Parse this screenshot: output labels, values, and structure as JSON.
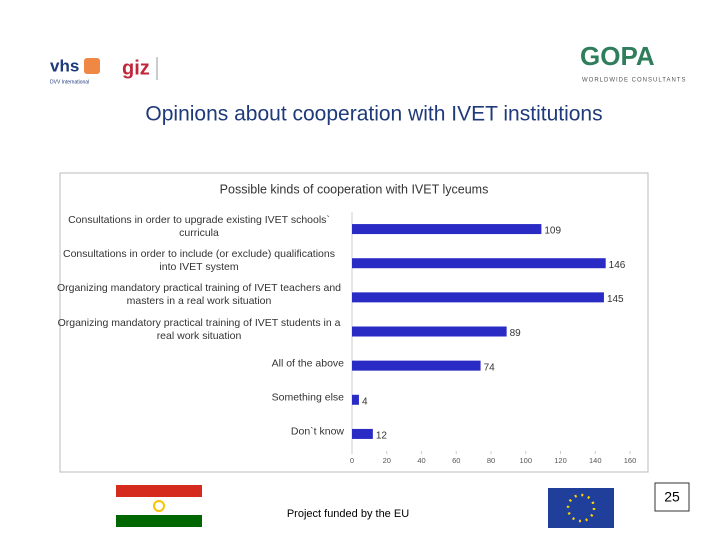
{
  "header": {
    "left_logo_1": "vhs",
    "left_logo_1_sub": "DVV International",
    "left_logo_2": "giz",
    "right_logo": "GOPA",
    "right_logo_sub": "WORLDWIDE CONSULTANTS"
  },
  "slide_title": "Opinions about cooperation with IVET institutions",
  "chart_data": {
    "type": "barh",
    "title": "Possible kinds of cooperation with IVET lyceums",
    "categories": [
      "Consultations in order to upgrade existing IVET schools` curricula",
      "Consultations in order to include (or exclude) qualifications into IVET system",
      "Organizing mandatory practical training of IVET teachers and masters in a real work situation",
      "Organizing mandatory practical training of IVET students in a real work situation",
      "All of the above",
      "Something else",
      "Don`t know"
    ],
    "values": [
      109,
      146,
      145,
      89,
      74,
      4,
      12
    ],
    "color": "#2a2ac4",
    "xlim": [
      0,
      160
    ],
    "xticks": [
      0,
      20,
      40,
      60,
      80,
      100,
      120,
      140,
      160
    ]
  },
  "footer": {
    "funding": "Project funded by the EU",
    "page_number": "25"
  }
}
